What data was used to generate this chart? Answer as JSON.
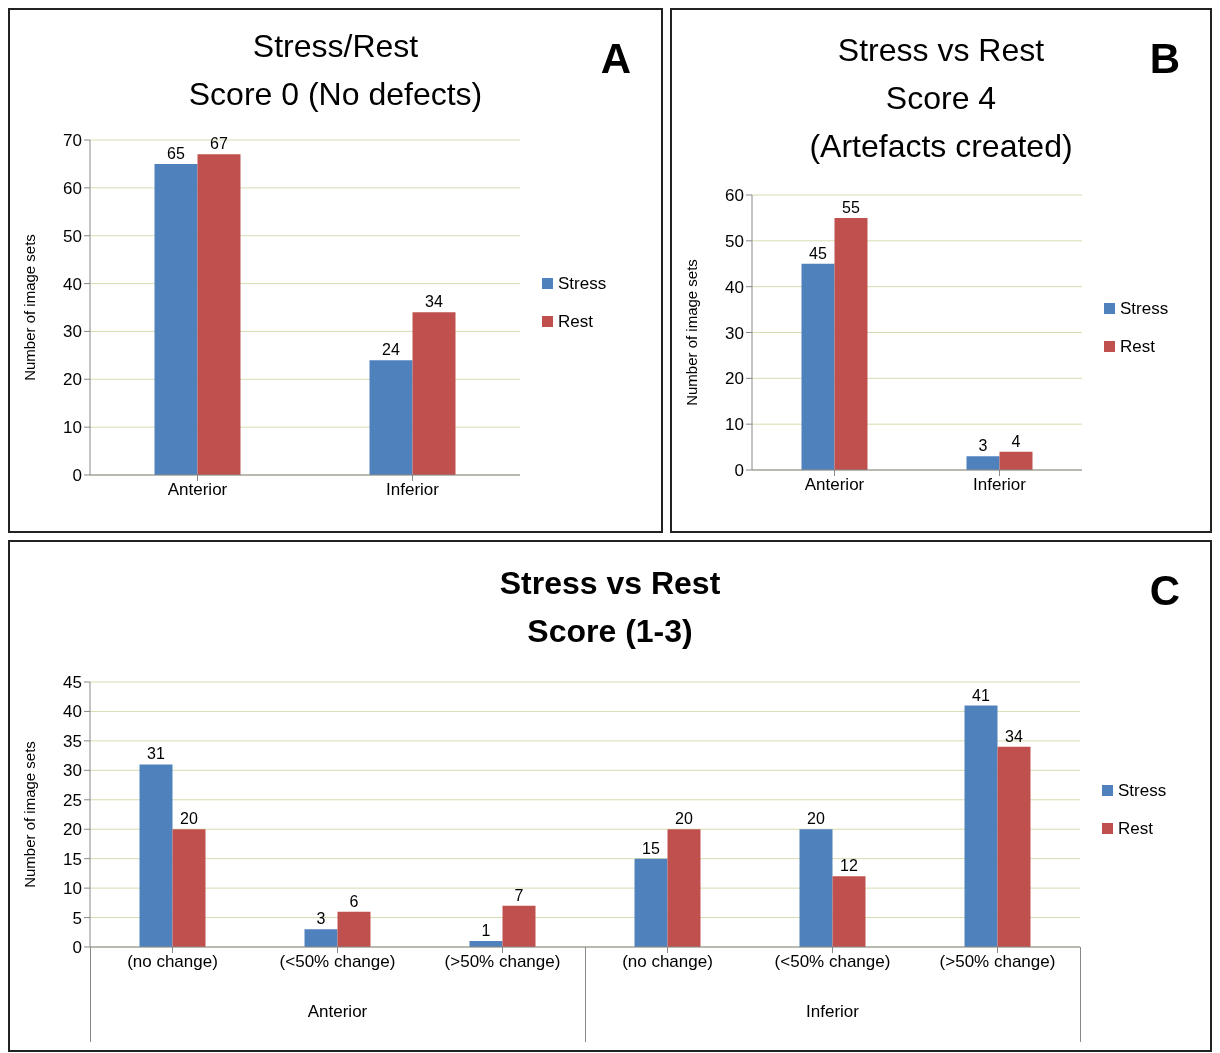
{
  "chart_data": [
    {
      "type": "bar",
      "title": "Stress/Rest\nScore 0 (No defects)",
      "ylabel": "Number of image sets",
      "categories": [
        "Anterior",
        "Inferior"
      ],
      "series": [
        {
          "name": "Stress",
          "color": "#4f81bd",
          "values": [
            65,
            24
          ]
        },
        {
          "name": "Rest",
          "color": "#c0504d",
          "values": [
            67,
            34
          ]
        }
      ],
      "ylim": [
        0,
        70
      ],
      "yticks": [
        0,
        10,
        20,
        30,
        40,
        50,
        60,
        70
      ],
      "grid": "y",
      "legend": "right",
      "data_labels": true,
      "annotations": [
        "A"
      ]
    },
    {
      "type": "bar",
      "title": "Stress vs Rest\nScore 4\n(Artefacts created)",
      "ylabel": "Number of image sets",
      "categories": [
        "Anterior",
        "Inferior"
      ],
      "series": [
        {
          "name": "Stress",
          "color": "#4f81bd",
          "values": [
            45,
            3
          ]
        },
        {
          "name": "Rest",
          "color": "#c0504d",
          "values": [
            55,
            4
          ]
        }
      ],
      "ylim": [
        0,
        60
      ],
      "yticks": [
        0,
        10,
        20,
        30,
        40,
        50,
        60
      ],
      "grid": "y",
      "legend": "right",
      "data_labels": true,
      "annotations": [
        "B"
      ]
    },
    {
      "type": "bar",
      "title": "Stress vs Rest\nScore (1-3)",
      "ylabel": "Number of image sets",
      "categories": [
        "(no change)",
        "(<50% change)",
        "(>50% change)",
        "(no change)",
        "(<50% change)",
        "(>50% change)"
      ],
      "series": [
        {
          "name": "Stress",
          "color": "#4f81bd",
          "values": [
            31,
            3,
            1,
            15,
            20,
            41
          ]
        },
        {
          "name": "Rest",
          "color": "#c0504d",
          "values": [
            20,
            6,
            7,
            20,
            12,
            34
          ]
        }
      ],
      "ylim": [
        0,
        45
      ],
      "yticks": [
        0,
        5,
        10,
        15,
        20,
        25,
        30,
        35,
        40,
        45
      ],
      "grid": "y",
      "legend": "right",
      "data_labels": true,
      "annotations": [
        "C",
        "Anterior",
        "Inferior"
      ]
    }
  ]
}
